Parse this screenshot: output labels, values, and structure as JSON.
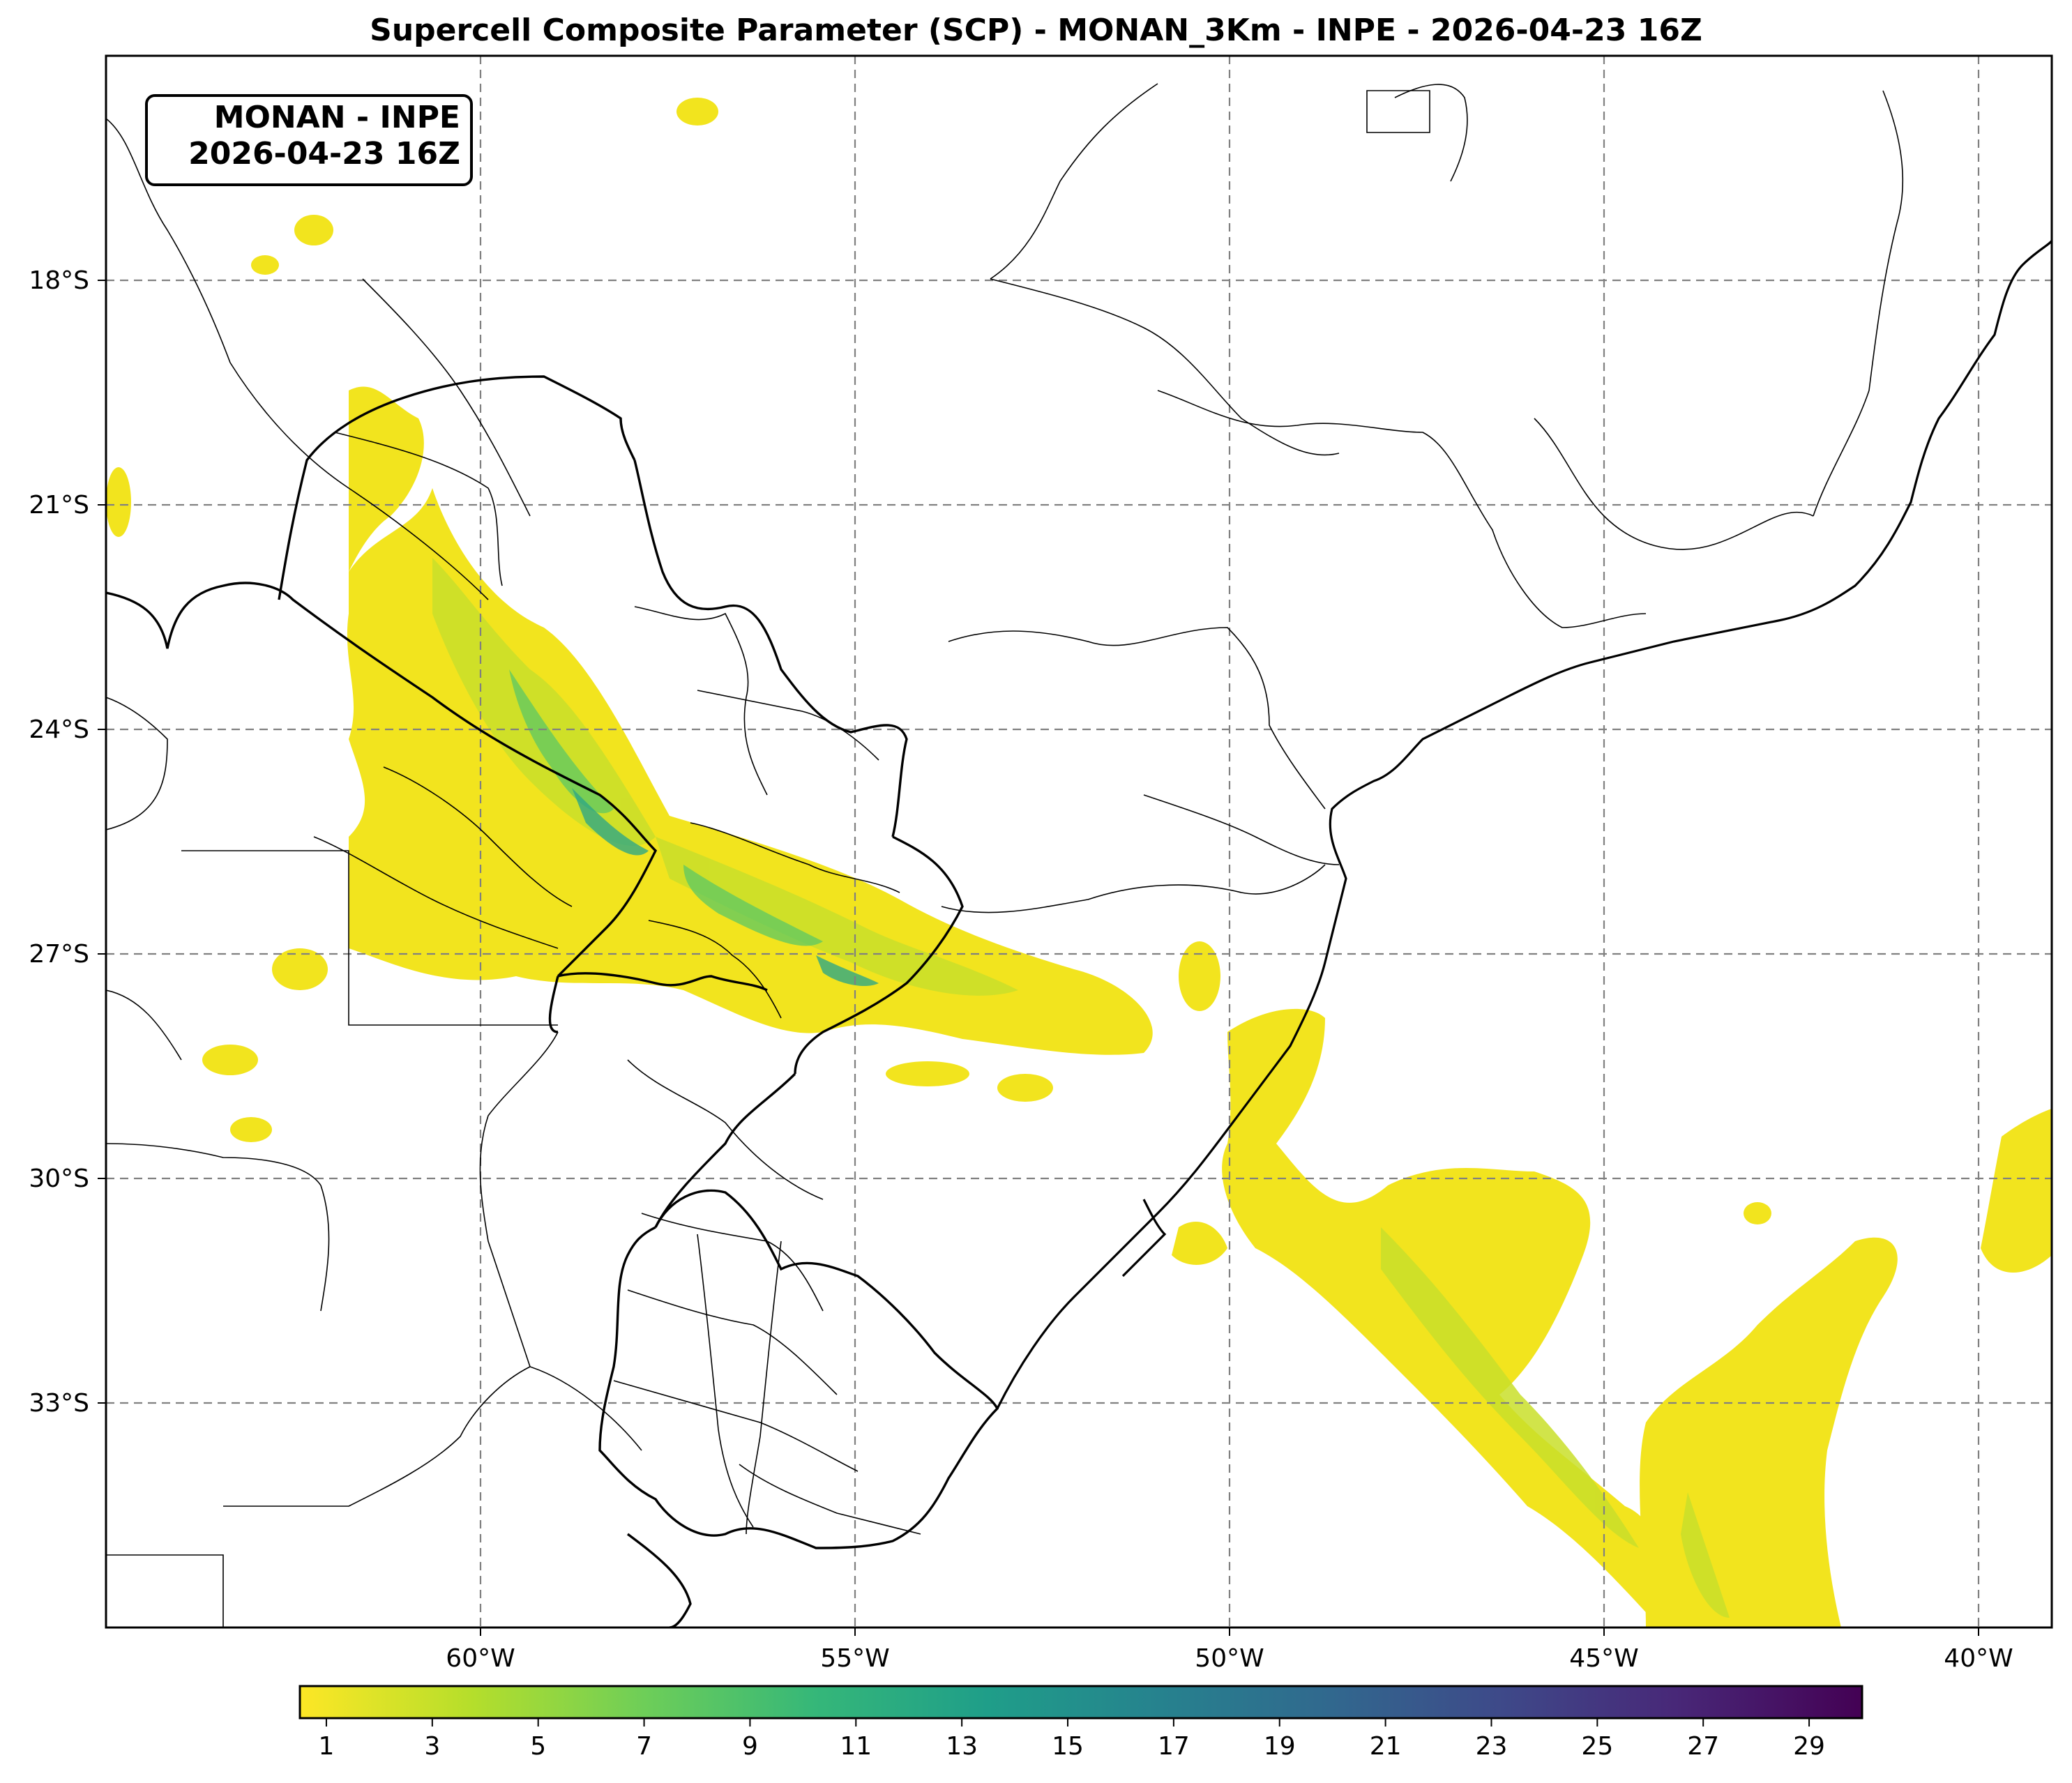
{
  "title": "Supercell Composite Parameter (SCP) - MONAN_3Km - INPE - 2026-04-23 16Z",
  "info_box": {
    "line1": "MONAN - INPE",
    "line2": "2026-04-23 16Z"
  },
  "map": {
    "lon_range": [
      -65,
      -39
    ],
    "lat_range": [
      -36,
      -15
    ],
    "lat_ticks": [
      {
        "value": -18,
        "label": "18°S"
      },
      {
        "value": -21,
        "label": "21°S"
      },
      {
        "value": -24,
        "label": "24°S"
      },
      {
        "value": -27,
        "label": "27°S"
      },
      {
        "value": -30,
        "label": "30°S"
      },
      {
        "value": -33,
        "label": "33°S"
      }
    ],
    "lon_ticks": [
      {
        "value": -60,
        "label": "60°W"
      },
      {
        "value": -55,
        "label": "55°W"
      },
      {
        "value": -50,
        "label": "50°W"
      },
      {
        "value": -45,
        "label": "45°W"
      },
      {
        "value": -40,
        "label": "40°W"
      }
    ],
    "gridlines": "dashed gray",
    "colormap": "viridis_r"
  },
  "colorbar": {
    "min": 0.5,
    "max": 30,
    "ticks": [
      "1",
      "3",
      "5",
      "7",
      "9",
      "11",
      "13",
      "15",
      "17",
      "19",
      "21",
      "23",
      "25",
      "27",
      "29"
    ],
    "colors": [
      "#fde725",
      "#b5de2b",
      "#6ece58",
      "#35b779",
      "#1f9e89",
      "#26828e",
      "#31688e",
      "#3e4989",
      "#482878",
      "#440154"
    ]
  }
}
